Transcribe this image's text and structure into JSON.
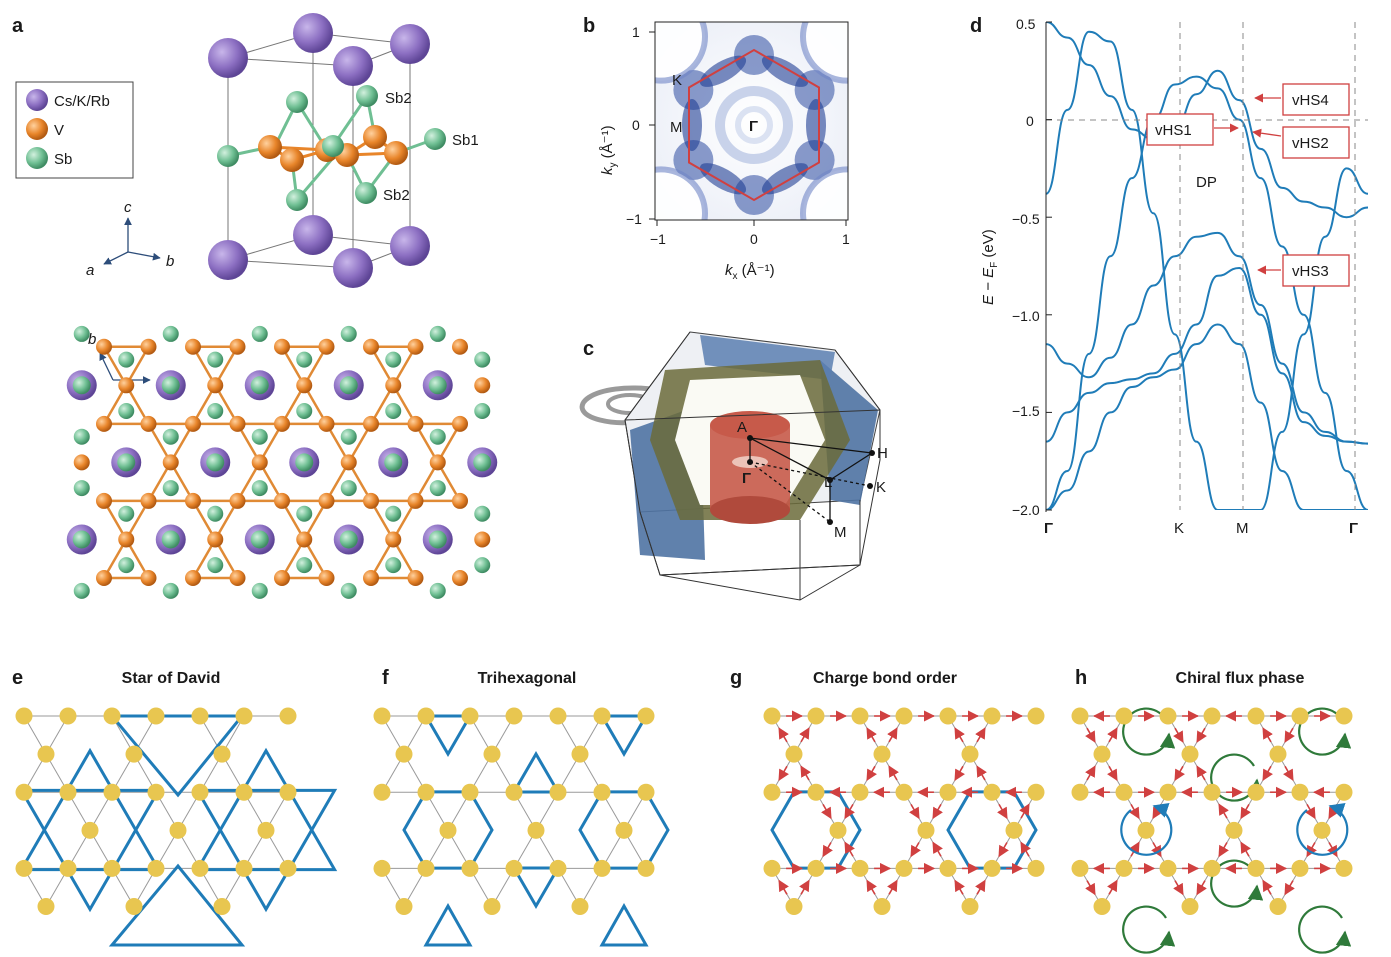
{
  "panel_labels": [
    "a",
    "b",
    "c",
    "d",
    "e",
    "f",
    "g",
    "h"
  ],
  "panel_a": {
    "legend": [
      {
        "label": "Cs/K/Rb",
        "color": "#8c6fc2"
      },
      {
        "label": "V",
        "color": "#e8852a"
      },
      {
        "label": "Sb",
        "color": "#6fbf93"
      }
    ],
    "atom_labels": [
      "Sb2",
      "Sb1",
      "Sb2"
    ],
    "axes_3d": {
      "up": "c",
      "left": "a",
      "right": "b"
    },
    "axes_2d": {
      "up": "b",
      "right": "a"
    }
  },
  "panel_b": {
    "xlabel_main": "k",
    "xlabel_sub": "x",
    "xlabel_unit": " (Å⁻¹)",
    "ylabel_main": "k",
    "ylabel_sub": "y",
    "ylabel_unit": " (Å⁻¹)",
    "xticks": [
      "−1",
      "0",
      "1"
    ],
    "yticks": [
      "1",
      "0",
      "−1"
    ],
    "points": [
      "K",
      "M",
      "Γ"
    ],
    "hexagon_color": "#d04040"
  },
  "panel_c": {
    "points": [
      "A",
      "Γ",
      "H",
      "L",
      "K",
      "M"
    ]
  },
  "panel_d": {
    "ylabel": "E − E",
    "ylabel_sub": "F",
    "ylabel_unit": " (eV)",
    "yticks": [
      "0.5",
      "0",
      "−0.5",
      "−1.0",
      "−1.5",
      "−2.0"
    ],
    "xticks": [
      "Γ",
      "K",
      "M",
      "Γ"
    ],
    "annotations": [
      "vHS4",
      "vHS1",
      "vHS2",
      "DP",
      "vHS3"
    ],
    "line_color": "#1f7cb8",
    "box_color": "#d04040"
  },
  "chart_data": {
    "type": "line",
    "title": "",
    "xlabel": "",
    "ylabel": "E − EF (eV)",
    "ylim": [
      -2.0,
      0.5
    ],
    "x_high_symmetry": [
      "Γ",
      "K",
      "M",
      "Γ"
    ],
    "x": [
      0,
      0.2,
      0.4,
      0.6,
      0.8,
      1.0,
      1.2,
      1.4,
      1.6,
      1.8,
      2.0,
      2.2,
      2.4,
      2.6,
      2.8,
      3.0
    ],
    "series": [
      {
        "values": [
          -0.38,
          0.05,
          0.45,
          0.4,
          0.05,
          -0.48,
          -1.1,
          -1.65,
          -2.0,
          -2.0,
          -2.0,
          -1.6,
          -1.1,
          -0.6,
          -0.25,
          -0.38
        ]
      },
      {
        "values": [
          0.5,
          0.42,
          0.28,
          0.12,
          -0.05,
          -0.1,
          -0.05,
          0.13,
          0.25,
          0.1,
          -0.15,
          -0.35,
          -0.42,
          -0.45,
          -0.5,
          -0.45
        ]
      },
      {
        "values": [
          -2.0,
          -1.8,
          -1.2,
          -0.7,
          -0.3,
          0.0,
          0.18,
          0.22,
          0.16,
          0.0,
          -0.3,
          -0.65,
          -1.0,
          -1.4,
          -1.8,
          -2.0
        ]
      },
      {
        "values": [
          -1.15,
          -1.25,
          -1.32,
          -1.22,
          -1.05,
          -0.85,
          -0.7,
          -0.6,
          -0.58,
          -0.7,
          -0.95,
          -1.25,
          -1.5,
          -1.6,
          -1.65,
          -1.66
        ]
      },
      {
        "values": [
          -1.65,
          -1.5,
          -1.4,
          -1.35,
          -1.33,
          -1.3,
          -1.2,
          -1.05,
          -0.8,
          -0.76,
          -1.0,
          -1.3,
          -1.55,
          -1.62,
          -1.65,
          -1.66
        ]
      },
      {
        "values": [
          -2.0,
          -1.9,
          -1.7,
          -1.5,
          -1.37,
          -1.32,
          -1.28,
          -1.15,
          -1.05,
          -1.15,
          -1.45,
          -1.8,
          -2.0,
          -2.0,
          -2.0,
          -2.0
        ]
      }
    ]
  },
  "panel_e": {
    "title": "Star of David"
  },
  "panel_f": {
    "title": "Trihexagonal"
  },
  "panel_g": {
    "title": "Charge bond order"
  },
  "panel_h": {
    "title": "Chiral flux phase"
  },
  "colors": {
    "lattice_node": "#e8c650",
    "lattice_edge": "#8a8a8a",
    "bond_blue": "#1f7cb8",
    "arrow_red": "#d04040",
    "flux_green": "#2f7a3a"
  }
}
